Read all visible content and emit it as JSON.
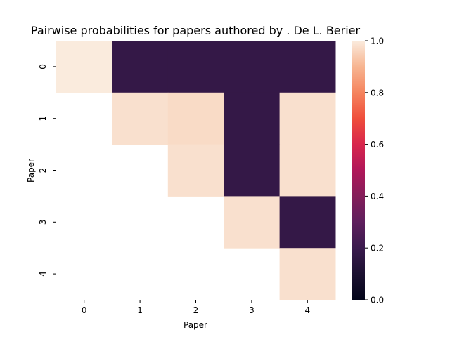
{
  "chart_data": {
    "type": "heatmap",
    "title": "Pairwise probabilities for papers authored by . De L. Berier",
    "xlabel": "Paper",
    "ylabel": "Paper",
    "x_categories": [
      "0",
      "1",
      "2",
      "3",
      "4"
    ],
    "y_categories": [
      "0",
      "1",
      "2",
      "3",
      "4"
    ],
    "values": [
      [
        1.0,
        0.18,
        0.18,
        0.18,
        0.18
      ],
      [
        null,
        0.98,
        0.97,
        0.18,
        0.98
      ],
      [
        null,
        null,
        0.98,
        0.18,
        0.98
      ],
      [
        null,
        null,
        null,
        0.98,
        0.18
      ],
      [
        null,
        null,
        null,
        null,
        0.98
      ]
    ],
    "colorbar": {
      "range": [
        0.0,
        1.0
      ],
      "ticks": [
        "0.0",
        "0.2",
        "0.4",
        "0.6",
        "0.8",
        "1.0"
      ],
      "colormap": "rocket"
    }
  }
}
